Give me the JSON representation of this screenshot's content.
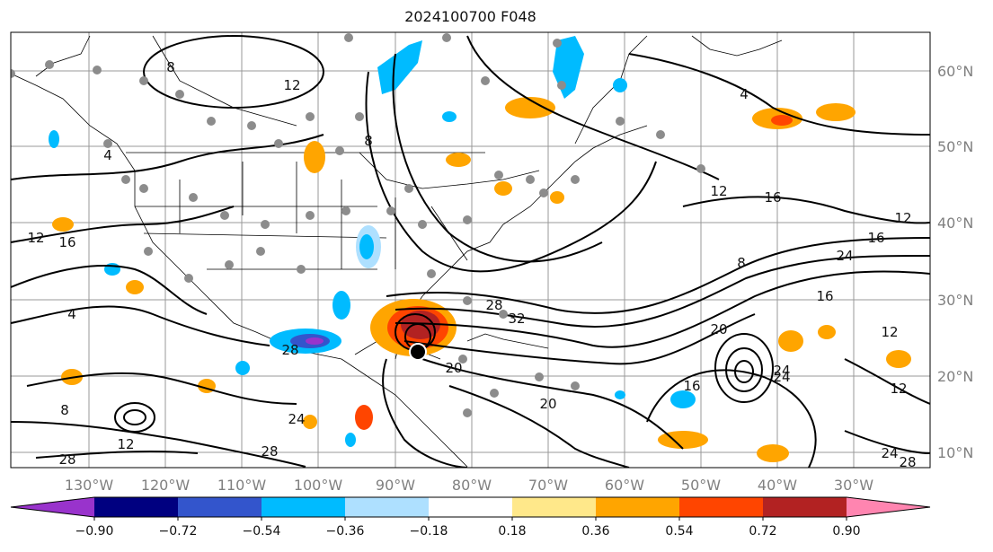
{
  "title": "2024100700 F048",
  "lon_labels": [
    "130°W",
    "120°W",
    "110°W",
    "100°W",
    "90°W",
    "80°W",
    "70°W",
    "60°W",
    "50°W",
    "40°W",
    "30°W"
  ],
  "lat_labels": [
    "60°N",
    "50°N",
    "40°N",
    "30°N",
    "20°N",
    "10°N"
  ],
  "contour_labels": [
    "8",
    "12",
    "4",
    "8",
    "12",
    "4",
    "16",
    "12",
    "16",
    "12",
    "16",
    "24",
    "8",
    "16",
    "20",
    "24",
    "12",
    "28",
    "32",
    "20",
    "20",
    "16",
    "24",
    "28",
    "24",
    "24",
    "28",
    "12",
    "12",
    "28",
    "28",
    "4",
    "8"
  ],
  "colorbar": {
    "colors": [
      "#9933cc",
      "#000080",
      "#3355cc",
      "#00bbff",
      "#aee0ff",
      "#ffffff",
      "#ffe88a",
      "#ffa500",
      "#ff4500",
      "#b22222",
      "#ff85b0"
    ],
    "tick_labels": [
      "−0.90",
      "−0.72",
      "−0.54",
      "−0.36",
      "−0.18",
      "0.18",
      "0.36",
      "0.54",
      "0.72",
      "0.90"
    ]
  },
  "colors": {
    "land": "#a0a0a0",
    "grid": "#999999",
    "contour": "#000000",
    "station": "#8c8c8c"
  }
}
